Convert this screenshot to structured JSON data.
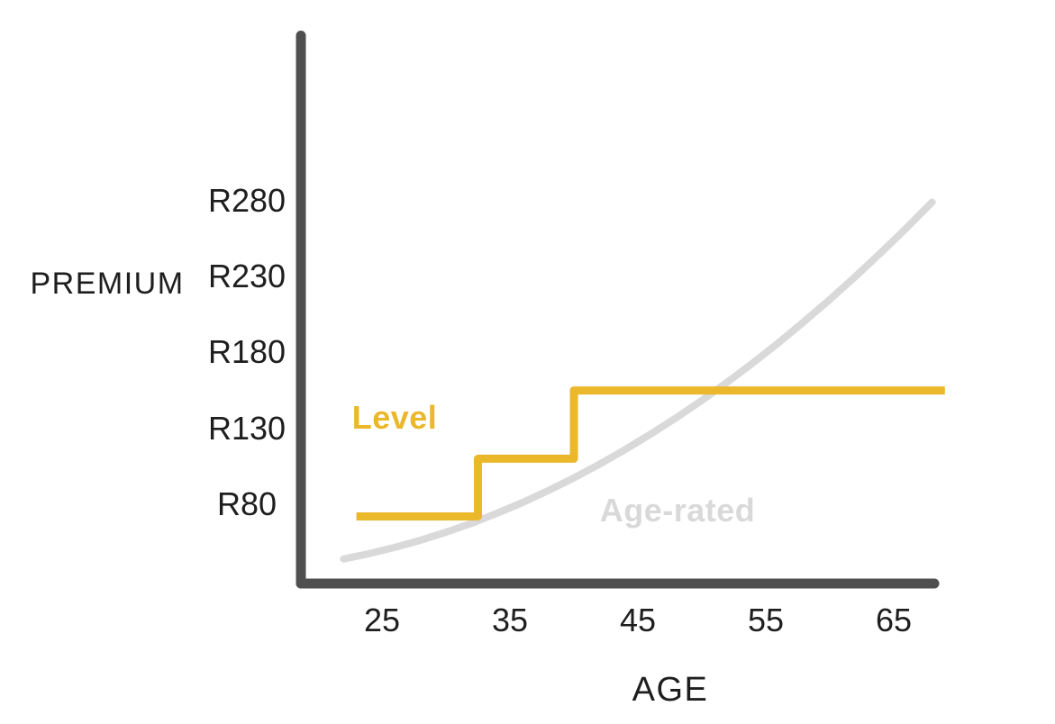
{
  "chart_data": {
    "type": "line",
    "title": "",
    "xlabel": "AGE",
    "ylabel": "PREMIUM",
    "currency_prefix": "R",
    "grid": false,
    "legend_position": "inline-labels",
    "axis_color": "#4F4F4F",
    "text_color": "#1E1E1E",
    "xlim": [
      18,
      69
    ],
    "ylim": [
      28,
      390
    ],
    "x_ticks": [
      25,
      35,
      45,
      55,
      65
    ],
    "y_ticks": [
      {
        "label": "R280",
        "value": 280
      },
      {
        "label": "R230",
        "value": 230
      },
      {
        "label": "R180",
        "value": 180
      },
      {
        "label": "R130",
        "value": 130
      },
      {
        "label": "R80",
        "value": 80
      }
    ],
    "series": [
      {
        "name": "Level",
        "style": "step",
        "color": "#EBB72B",
        "stroke_width": 9,
        "points": [
          [
            23,
            72
          ],
          [
            32.5,
            72
          ],
          [
            32.5,
            110
          ],
          [
            40,
            110
          ],
          [
            40,
            155
          ],
          [
            69,
            155
          ]
        ]
      },
      {
        "name": "Age-rated",
        "style": "smooth",
        "color": "#D9D9D9",
        "stroke_width": 8,
        "points": [
          [
            22,
            44
          ],
          [
            24,
            47.5
          ],
          [
            26,
            51.6
          ],
          [
            28,
            56.3
          ],
          [
            30,
            61.6
          ],
          [
            32,
            67.5
          ],
          [
            34,
            74.1
          ],
          [
            36,
            81.2
          ],
          [
            38,
            89
          ],
          [
            40,
            97.4
          ],
          [
            42,
            106.4
          ],
          [
            44,
            116
          ],
          [
            46,
            126.2
          ],
          [
            48,
            137
          ],
          [
            50,
            148.4
          ],
          [
            52,
            160.5
          ],
          [
            54,
            173.2
          ],
          [
            56,
            186.4
          ],
          [
            58,
            200.4
          ],
          [
            60,
            214.9
          ],
          [
            62,
            230
          ],
          [
            64,
            245.7
          ],
          [
            66,
            262
          ],
          [
            68,
            279
          ]
        ]
      }
    ]
  }
}
